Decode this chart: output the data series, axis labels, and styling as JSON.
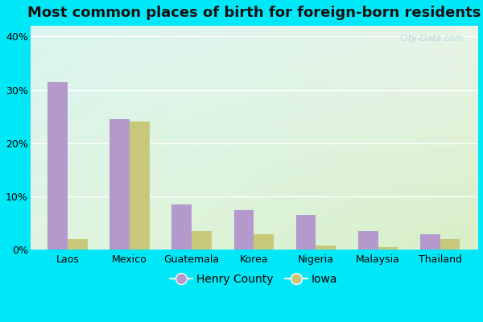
{
  "title": "Most common places of birth for foreign-born residents",
  "categories": [
    "Laos",
    "Mexico",
    "Guatemala",
    "Korea",
    "Nigeria",
    "Malaysia",
    "Thailand"
  ],
  "henry_county": [
    31.5,
    24.5,
    8.5,
    7.5,
    6.5,
    3.5,
    3.0
  ],
  "iowa": [
    2.0,
    24.0,
    3.5,
    3.0,
    0.8,
    0.5,
    2.0
  ],
  "henry_color": "#b399cc",
  "iowa_color": "#c8c87a",
  "outer_bg": "#00e8f8",
  "grad_top_left": "#daf5f0",
  "grad_bottom_right": "#d8efc8",
  "title_fontsize": 13,
  "ylabel_ticks": [
    "0%",
    "10%",
    "20%",
    "30%",
    "40%"
  ],
  "ylabel_values": [
    0,
    10,
    20,
    30,
    40
  ],
  "ylim": [
    0,
    42
  ],
  "legend_labels": [
    "Henry County",
    "Iowa"
  ],
  "watermark": "City-Data.com",
  "bar_width": 0.32
}
